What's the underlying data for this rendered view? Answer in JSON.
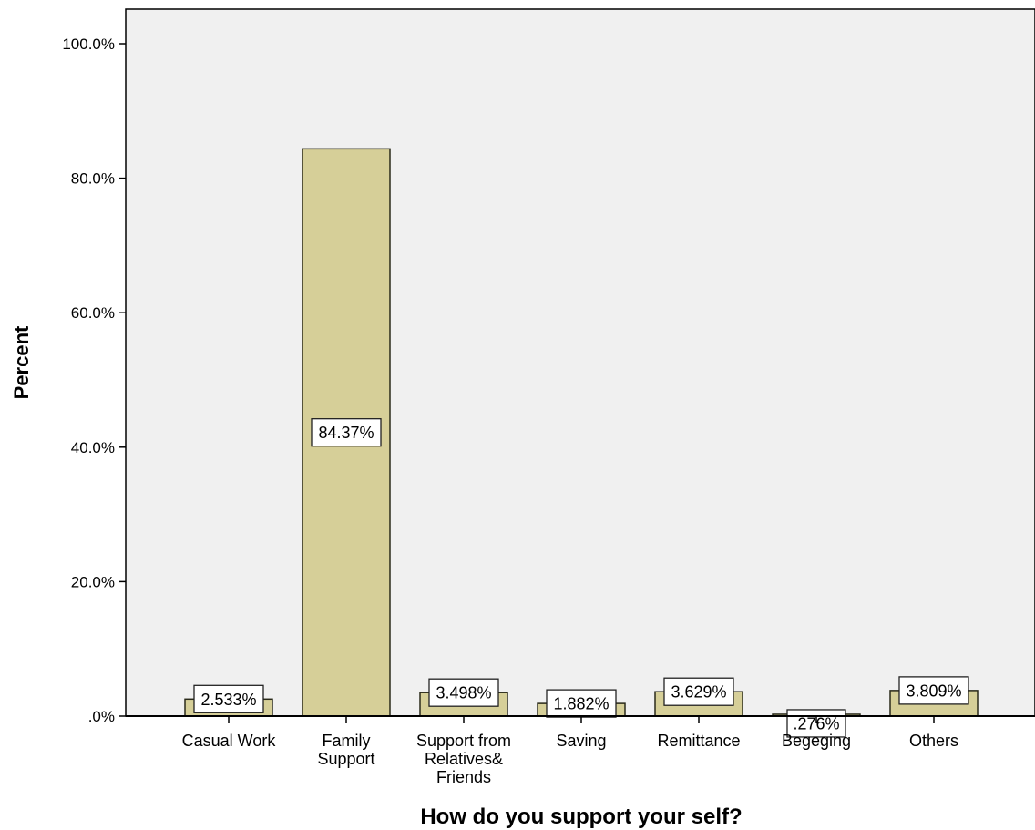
{
  "chart_data": {
    "type": "bar",
    "title": "",
    "xlabel": "How do you support your self?",
    "ylabel": "Percent",
    "categories": [
      [
        "Casual Work"
      ],
      [
        "Family",
        "Support"
      ],
      [
        "Support from",
        "Relatives&",
        "Friends"
      ],
      [
        "Saving"
      ],
      [
        "Remittance"
      ],
      [
        "Begeging"
      ],
      [
        "Others"
      ]
    ],
    "values": [
      2.533,
      84.37,
      3.498,
      1.882,
      3.629,
      0.276,
      3.809
    ],
    "value_labels": [
      "2.533%",
      "84.37%",
      "3.498%",
      "1.882%",
      "3.629%",
      ".276%",
      "3.809%"
    ],
    "ylim": [
      0,
      100
    ],
    "yticks": [
      0,
      20,
      40,
      60,
      80,
      100
    ],
    "ytick_labels": [
      ".0%",
      "20.0%",
      "40.0%",
      "60.0%",
      "80.0%",
      "100.0%"
    ],
    "grid": false,
    "colors": {
      "bar_fill": "#d6cf98",
      "bar_stroke": "#2a2a1a",
      "plot_bg": "#f0f0f0",
      "axis": "#000000"
    }
  }
}
